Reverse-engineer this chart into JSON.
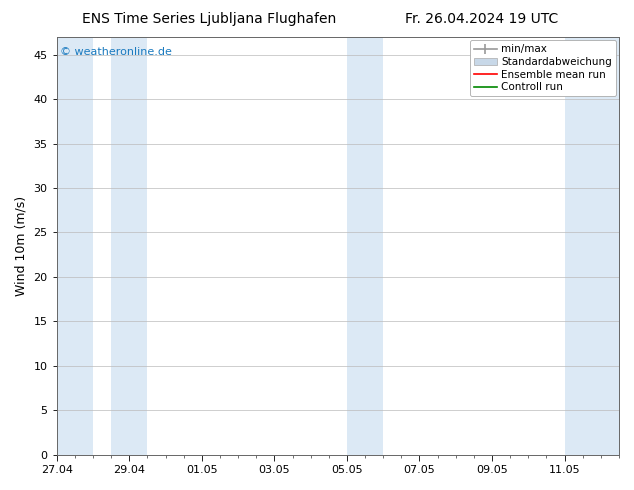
{
  "title_left": "ENS Time Series Ljubljana Flughafen",
  "title_right": "Fr. 26.04.2024 19 UTC",
  "ylabel": "Wind 10m (m/s)",
  "ylim": [
    0,
    47
  ],
  "yticks": [
    0,
    5,
    10,
    15,
    20,
    25,
    30,
    35,
    40,
    45
  ],
  "xtick_labels": [
    "27.04",
    "29.04",
    "01.05",
    "03.05",
    "05.05",
    "07.05",
    "09.05",
    "11.05"
  ],
  "xtick_offsets": [
    0,
    2,
    4,
    6,
    8,
    10,
    12,
    14
  ],
  "x_min": 0,
  "x_max": 15.5,
  "shaded_bands": [
    [
      0.0,
      1.0
    ],
    [
      1.5,
      2.5
    ],
    [
      8.0,
      9.0
    ],
    [
      14.0,
      15.5
    ]
  ],
  "shade_color": "#dce9f5",
  "background_color": "#ffffff",
  "watermark_text": "© weatheronline.de",
  "watermark_color": "#1a7abf",
  "legend_items": [
    {
      "label": "min/max",
      "color": "#aaaaaa",
      "style": "minmax"
    },
    {
      "label": "Standardabweichung",
      "color": "#c8d8e8",
      "style": "box"
    },
    {
      "label": "Ensemble mean run",
      "color": "#ff0000",
      "style": "line"
    },
    {
      "label": "Controll run",
      "color": "#008800",
      "style": "line"
    }
  ],
  "title_fontsize": 10,
  "ylabel_fontsize": 9,
  "tick_fontsize": 8,
  "legend_fontsize": 7.5,
  "watermark_fontsize": 8
}
